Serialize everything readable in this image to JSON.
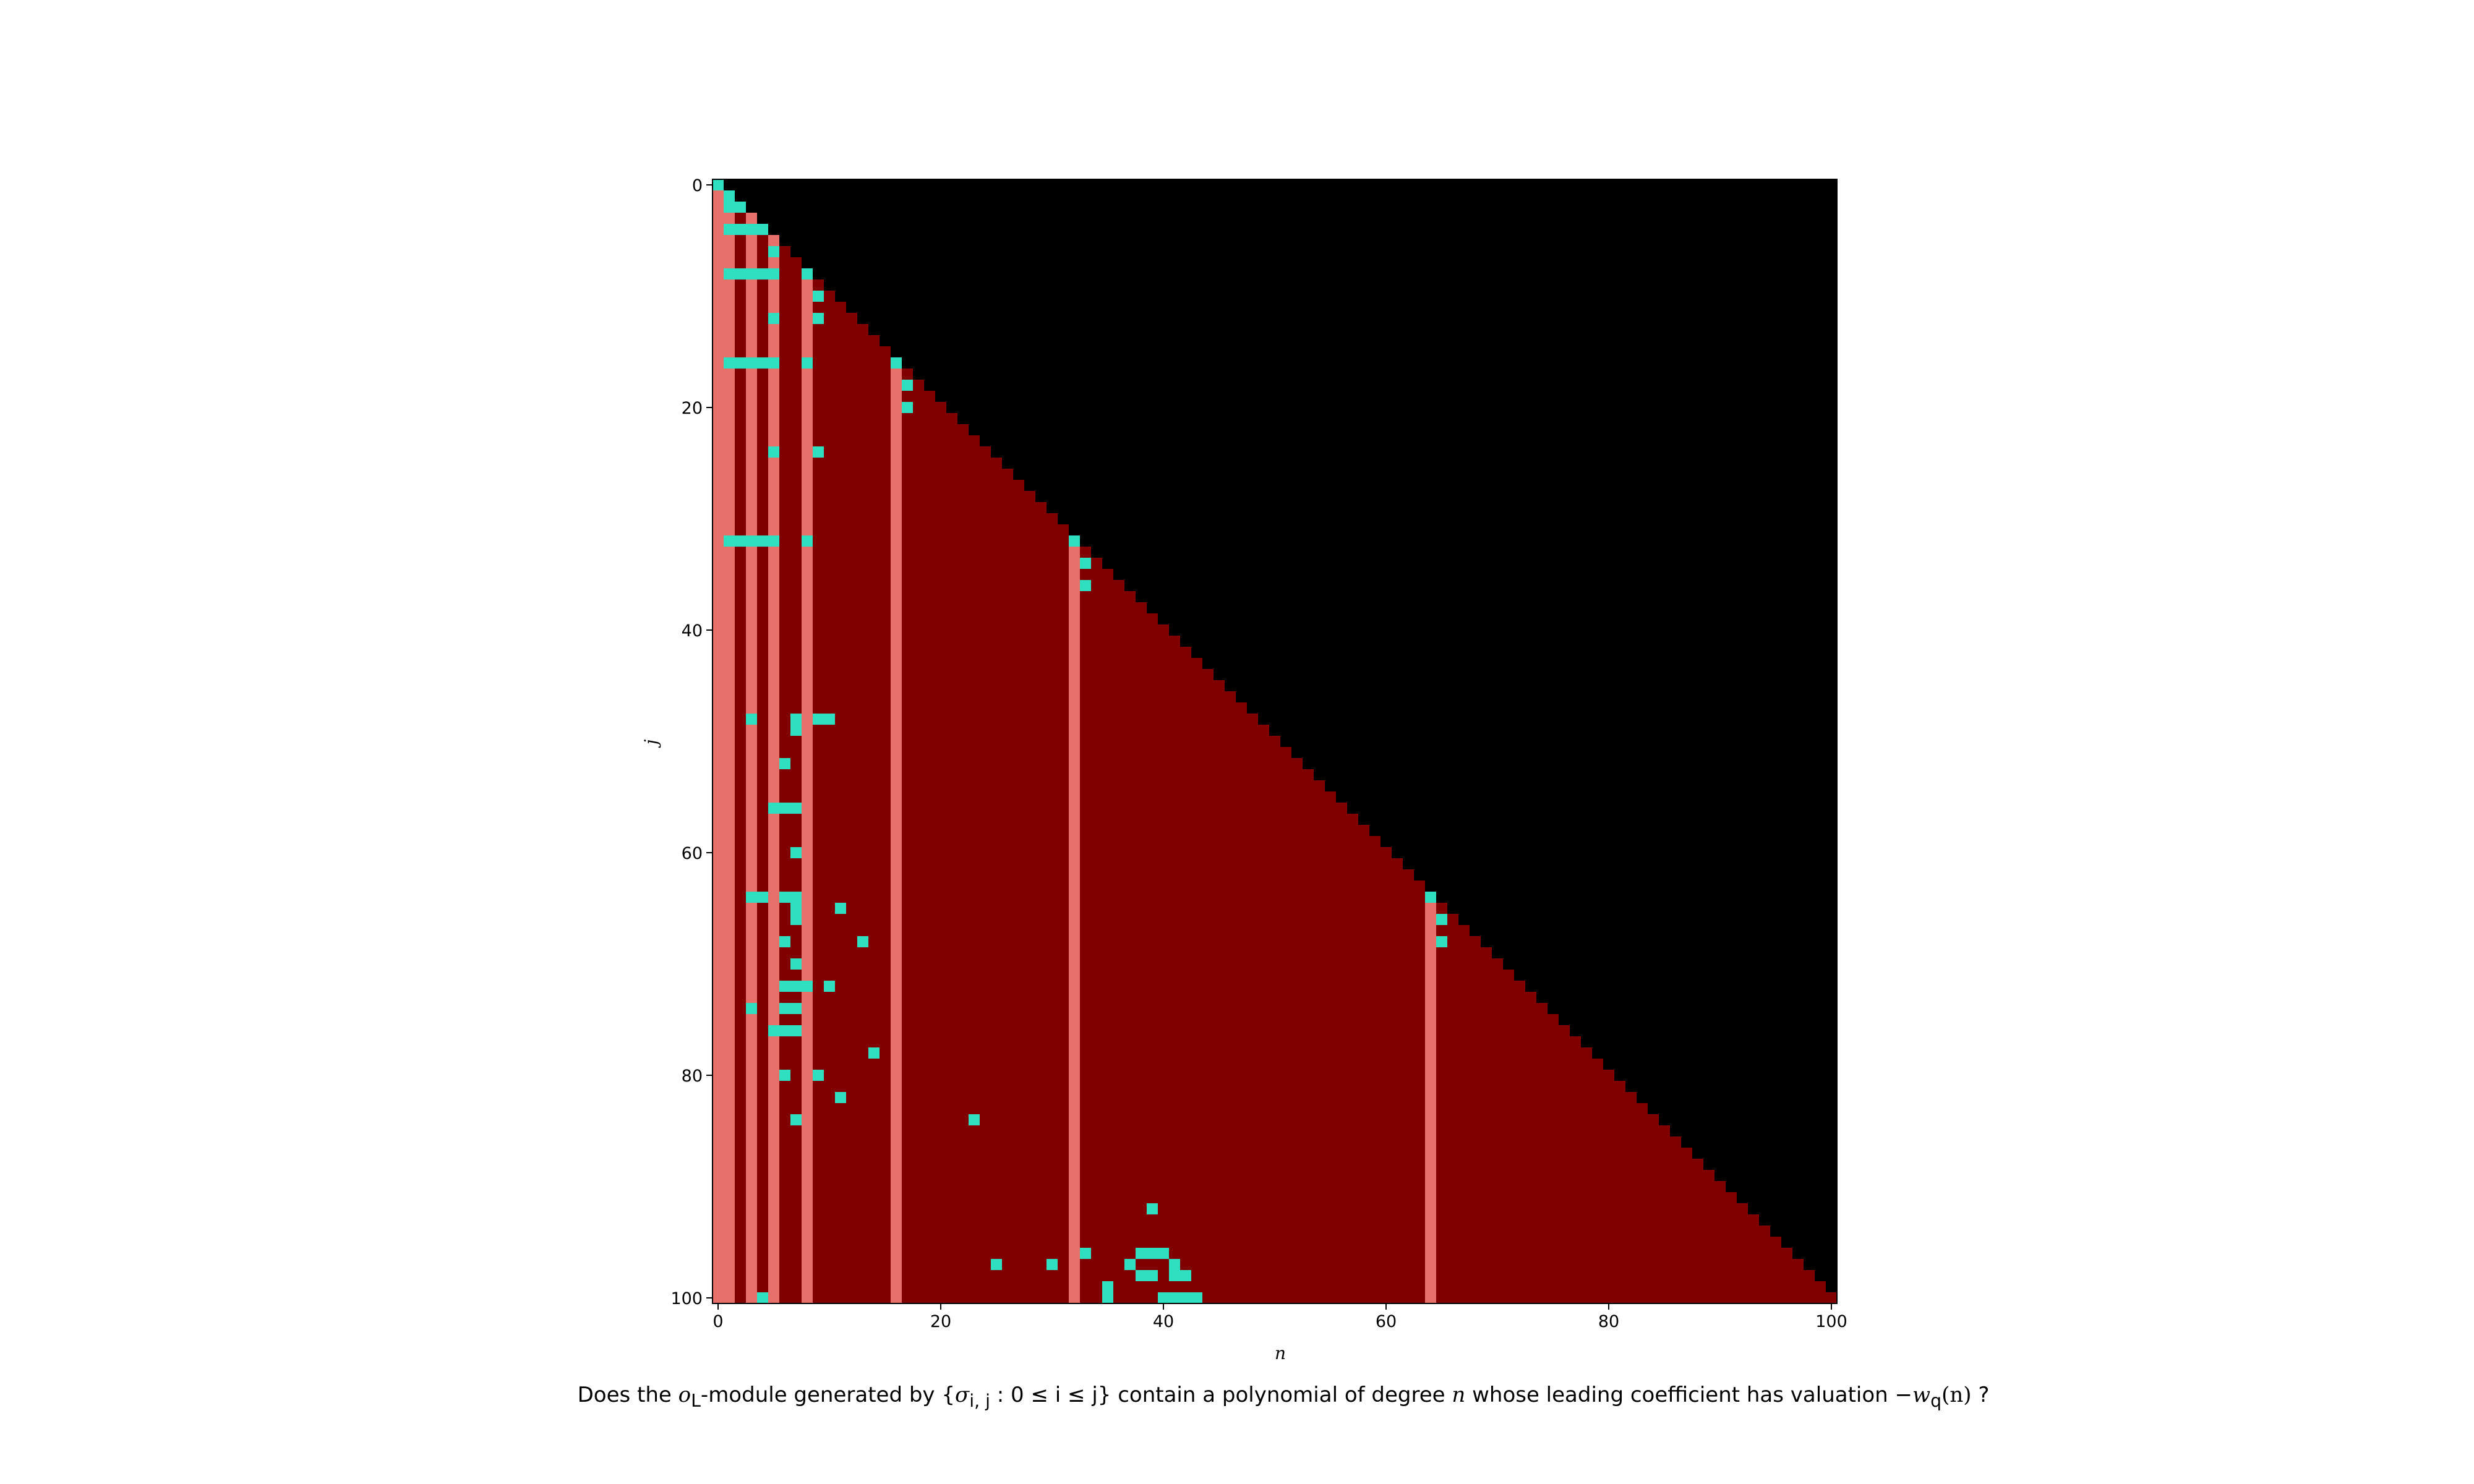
{
  "chart_data": {
    "type": "heatmap",
    "title": "",
    "xlabel": "n",
    "ylabel": "j",
    "x_ticks": [
      0,
      20,
      40,
      60,
      80,
      100
    ],
    "y_ticks": [
      0,
      20,
      40,
      60,
      80,
      100
    ],
    "xlim": [
      0,
      100
    ],
    "ylim": [
      0,
      100
    ],
    "y_axis_inverted": true,
    "grid": false,
    "legend": "none",
    "colors": {
      "undefined_region": "#000000",
      "no": "#800000",
      "yes_column": "#e8706a",
      "highlight": "#2ee0c0"
    },
    "region_rule": "cells with n > j are black; cells with n <= j are dark red",
    "light_columns": [
      0,
      1,
      3,
      5,
      8,
      16,
      32,
      64
    ],
    "highlight_cells": [
      [
        0,
        0
      ],
      [
        1,
        1
      ],
      [
        1,
        2
      ],
      [
        2,
        2
      ],
      [
        1,
        4
      ],
      [
        2,
        4
      ],
      [
        3,
        4
      ],
      [
        4,
        4
      ],
      [
        5,
        6
      ],
      [
        1,
        8
      ],
      [
        2,
        8
      ],
      [
        3,
        8
      ],
      [
        4,
        8
      ],
      [
        5,
        8
      ],
      [
        8,
        8
      ],
      [
        9,
        10
      ],
      [
        5,
        12
      ],
      [
        9,
        12
      ],
      [
        1,
        16
      ],
      [
        2,
        16
      ],
      [
        3,
        16
      ],
      [
        4,
        16
      ],
      [
        5,
        16
      ],
      [
        8,
        16
      ],
      [
        16,
        16
      ],
      [
        17,
        18
      ],
      [
        17,
        20
      ],
      [
        5,
        24
      ],
      [
        9,
        24
      ],
      [
        1,
        32
      ],
      [
        2,
        32
      ],
      [
        3,
        32
      ],
      [
        4,
        32
      ],
      [
        5,
        32
      ],
      [
        8,
        32
      ],
      [
        32,
        32
      ],
      [
        33,
        34
      ],
      [
        33,
        36
      ],
      [
        3,
        48
      ],
      [
        7,
        48
      ],
      [
        9,
        48
      ],
      [
        10,
        48
      ],
      [
        7,
        49
      ],
      [
        6,
        52
      ],
      [
        5,
        56
      ],
      [
        6,
        56
      ],
      [
        7,
        56
      ],
      [
        7,
        60
      ],
      [
        3,
        64
      ],
      [
        4,
        64
      ],
      [
        6,
        64
      ],
      [
        7,
        64
      ],
      [
        64,
        64
      ],
      [
        7,
        65
      ],
      [
        11,
        65
      ],
      [
        7,
        66
      ],
      [
        65,
        66
      ],
      [
        6,
        68
      ],
      [
        13,
        68
      ],
      [
        65,
        68
      ],
      [
        7,
        70
      ],
      [
        6,
        72
      ],
      [
        7,
        72
      ],
      [
        8,
        72
      ],
      [
        10,
        72
      ],
      [
        3,
        74
      ],
      [
        6,
        74
      ],
      [
        7,
        74
      ],
      [
        5,
        76
      ],
      [
        6,
        76
      ],
      [
        7,
        76
      ],
      [
        14,
        78
      ],
      [
        6,
        80
      ],
      [
        9,
        80
      ],
      [
        11,
        82
      ],
      [
        7,
        84
      ],
      [
        23,
        84
      ],
      [
        39,
        92
      ],
      [
        33,
        96
      ],
      [
        38,
        96
      ],
      [
        39,
        96
      ],
      [
        40,
        96
      ],
      [
        25,
        97
      ],
      [
        30,
        97
      ],
      [
        37,
        97
      ],
      [
        41,
        97
      ],
      [
        38,
        98
      ],
      [
        39,
        98
      ],
      [
        41,
        98
      ],
      [
        42,
        98
      ],
      [
        35,
        99
      ],
      [
        4,
        100
      ],
      [
        35,
        100
      ],
      [
        40,
        100
      ],
      [
        41,
        100
      ],
      [
        42,
        100
      ],
      [
        43,
        100
      ]
    ]
  },
  "caption": {
    "prefix": "Does the ",
    "o": "o",
    "o_sub": "L",
    "mid1": "-module generated by {",
    "sigma": "σ",
    "sigma_sub": "i, j",
    "cond": " : 0 ≤ i ≤ j",
    "mid2": "} contain a polynomial of degree ",
    "n": "n",
    "mid3": " whose leading coefficient has valuation −",
    "w": "w",
    "w_sub": "q",
    "w_arg": "(n)",
    "suffix": " ?"
  }
}
